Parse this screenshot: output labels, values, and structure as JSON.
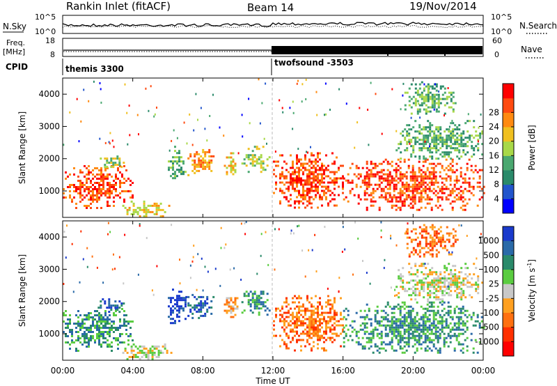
{
  "header": {
    "station": "Rankin Inlet (fitACF)",
    "beam": "Beam 14",
    "date": "19/Nov/2014"
  },
  "nsky_panel": {
    "left_label": "N.Sky",
    "left_ticks": [
      "10^5",
      "10^0"
    ],
    "right_ticks": [
      "10^5",
      "10^0"
    ],
    "right_label": "N.Search"
  },
  "freq_panel": {
    "left_label_line1": "Freq.",
    "left_label_line2": "[MHz]",
    "left_ticks": [
      "18",
      "8"
    ],
    "right_ticks": [
      "60",
      "0"
    ],
    "right_label": "Nave"
  },
  "cpid": {
    "label": "CPID",
    "segments": [
      {
        "name": "themis 3300",
        "start_hour": 0
      },
      {
        "name": "twofsound -3503",
        "start_hour": 12
      }
    ]
  },
  "x_axis": {
    "label": "Time UT",
    "ticks": [
      "00:00",
      "04:00",
      "08:00",
      "12:00",
      "16:00",
      "20:00",
      "00:00"
    ],
    "range_hours": [
      0,
      24
    ]
  },
  "chart_data": [
    {
      "type": "heatmap",
      "quantity": "power",
      "ylabel": "Slant Range [km]",
      "ylim": [
        180,
        4500
      ],
      "yticks": [
        "1000",
        "2000",
        "3000",
        "4000"
      ],
      "colorbar": {
        "label": "Power [dB]",
        "ticks": [
          "4",
          "8",
          "12",
          "16",
          "20",
          "24",
          "28"
        ],
        "colors": [
          "#0000ff",
          "#2255cc",
          "#2a8a6a",
          "#4aa870",
          "#a8d848",
          "#f0c020",
          "#ff8a10",
          "#ff4a10",
          "#ff0000"
        ]
      },
      "clusters": [
        {
          "t": [
            0.0,
            4.0
          ],
          "r": [
            500,
            1800
          ],
          "value": 28
        },
        {
          "t": [
            2.0,
            3.6
          ],
          "r": [
            1700,
            2100
          ],
          "value": 16
        },
        {
          "t": [
            3.4,
            6.2
          ],
          "r": [
            200,
            700
          ],
          "value": 20
        },
        {
          "t": [
            6.0,
            7.0
          ],
          "r": [
            1300,
            2400
          ],
          "value": 12
        },
        {
          "t": [
            7.0,
            8.6
          ],
          "r": [
            1500,
            2300
          ],
          "value": 24
        },
        {
          "t": [
            9.2,
            10.0
          ],
          "r": [
            1500,
            2200
          ],
          "value": 20
        },
        {
          "t": [
            10.2,
            11.8
          ],
          "r": [
            1600,
            2400
          ],
          "value": 16
        },
        {
          "t": [
            12.0,
            16.0
          ],
          "r": [
            500,
            2200
          ],
          "value": 26
        },
        {
          "t": [
            16.0,
            24.0
          ],
          "r": [
            400,
            2000
          ],
          "value": 28
        },
        {
          "t": [
            19.0,
            24.0
          ],
          "r": [
            2000,
            3200
          ],
          "value": 12
        },
        {
          "t": [
            19.5,
            22.5
          ],
          "r": [
            3400,
            4400
          ],
          "value": 14
        }
      ]
    },
    {
      "type": "heatmap",
      "quantity": "velocity",
      "ylabel": "Slant Range [km]",
      "ylim": [
        180,
        4500
      ],
      "yticks": [
        "1000",
        "2000",
        "3000",
        "4000"
      ],
      "colorbar": {
        "label": "Velocity [m s",
        "label_sup": "-1",
        "label_end": "]",
        "ticks": [
          "1000",
          "500",
          "100",
          "25",
          "-25",
          "-100",
          "-500",
          "-1000"
        ],
        "colors": [
          "#1a3acc",
          "#2a6aa8",
          "#2a8a6a",
          "#5acc40",
          "#c8c8c8",
          "#ffa020",
          "#ff7010",
          "#ff3000",
          "#ff0000"
        ]
      },
      "clusters": [
        {
          "t": [
            0.0,
            4.0
          ],
          "r": [
            500,
            1800
          ],
          "value": 100
        },
        {
          "t": [
            2.0,
            3.6
          ],
          "r": [
            1700,
            2100
          ],
          "value": 500
        },
        {
          "t": [
            3.4,
            6.2
          ],
          "r": [
            200,
            700
          ],
          "value": -25
        },
        {
          "t": [
            6.0,
            7.0
          ],
          "r": [
            1300,
            2400
          ],
          "value": 1000
        },
        {
          "t": [
            7.0,
            8.6
          ],
          "r": [
            1500,
            2300
          ],
          "value": 500
        },
        {
          "t": [
            9.2,
            10.0
          ],
          "r": [
            1500,
            2200
          ],
          "value": -100
        },
        {
          "t": [
            10.2,
            11.8
          ],
          "r": [
            1600,
            2400
          ],
          "value": 100
        },
        {
          "t": [
            12.0,
            16.0
          ],
          "r": [
            500,
            2200
          ],
          "value": -300
        },
        {
          "t": [
            16.0,
            24.0
          ],
          "r": [
            400,
            2000
          ],
          "value": 200
        },
        {
          "t": [
            19.0,
            24.0
          ],
          "r": [
            2000,
            3200
          ],
          "value": -25
        },
        {
          "t": [
            19.5,
            22.5
          ],
          "r": [
            3400,
            4400
          ],
          "value": -300
        }
      ]
    }
  ]
}
